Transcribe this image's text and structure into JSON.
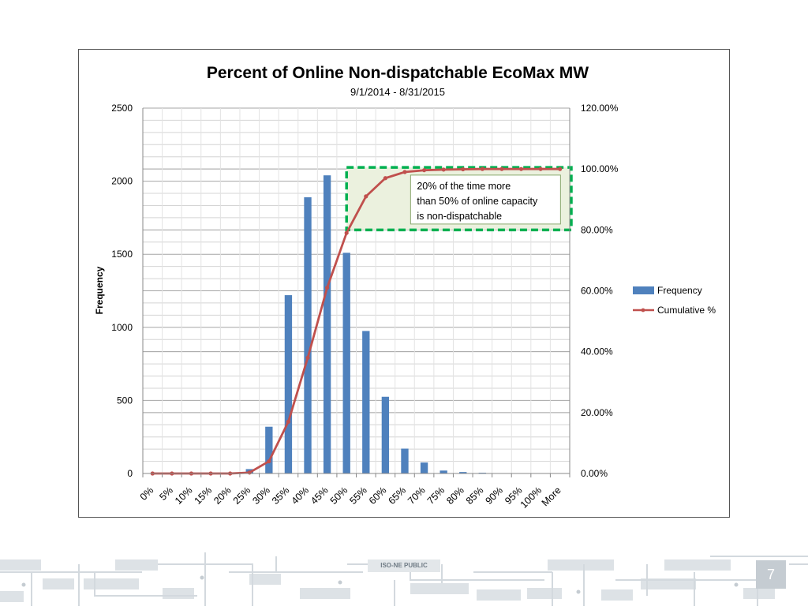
{
  "chart_data": {
    "type": "bar",
    "title": "Percent of  Online Non-dispatchable EcoMax MW",
    "subtitle": "9/1/2014 - 8/31/2015",
    "xlabel": "",
    "ylabel": "Frequency",
    "ylim": [
      0,
      2500
    ],
    "yticks": [
      "0",
      "500",
      "1000",
      "1500",
      "2000",
      "2500"
    ],
    "y2lim": [
      0,
      1.2
    ],
    "y2ticks": [
      "0.00%",
      "20.00%",
      "40.00%",
      "60.00%",
      "80.00%",
      "100.00%",
      "120.00%"
    ],
    "grid": true,
    "legend_position": "right",
    "categories": [
      "0%",
      "5%",
      "10%",
      "15%",
      "20%",
      "25%",
      "30%",
      "35%",
      "40%",
      "45%",
      "50%",
      "55%",
      "60%",
      "65%",
      "70%",
      "75%",
      "80%",
      "85%",
      "90%",
      "95%",
      "100%",
      "More"
    ],
    "series": [
      {
        "name": "Frequency",
        "type": "bar",
        "axis": "left",
        "color": "#4f81bd",
        "values": [
          0,
          0,
          0,
          0,
          0,
          30,
          320,
          1220,
          1890,
          2040,
          1510,
          975,
          525,
          170,
          75,
          20,
          10,
          5,
          0,
          0,
          0,
          0
        ]
      },
      {
        "name": "Cumulative %",
        "type": "line",
        "axis": "right",
        "color": "#c0504d",
        "values": [
          0,
          0,
          0,
          0,
          0,
          0.003,
          0.04,
          0.17,
          0.38,
          0.61,
          0.79,
          0.91,
          0.97,
          0.99,
          0.996,
          0.998,
          0.999,
          1.0,
          1.0,
          1.0,
          1.0,
          1.0
        ]
      }
    ],
    "annotation": {
      "lines": [
        "20%  of the time more",
        "than 50% of online  capacity",
        "is non-dispatchable"
      ],
      "box_color": "#00b050",
      "fill_color": "#ebf1de"
    }
  },
  "footer": {
    "label": "ISO-NE PUBLIC",
    "page_number": "7"
  }
}
